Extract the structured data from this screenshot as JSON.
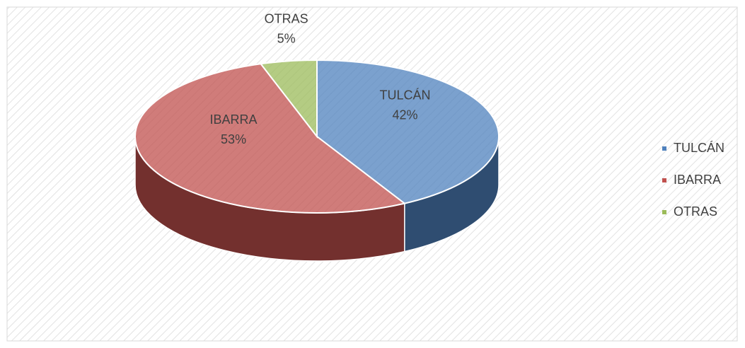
{
  "chart_data": {
    "type": "pie",
    "categories": [
      "TULCÁN",
      "IBARRA",
      "OTRAS"
    ],
    "values": [
      42,
      53,
      5
    ],
    "value_labels": [
      "42%",
      "53%",
      "5%"
    ],
    "colors": [
      "#4f81bd",
      "#c0504d",
      "#9bbb59"
    ],
    "legend": "right"
  }
}
